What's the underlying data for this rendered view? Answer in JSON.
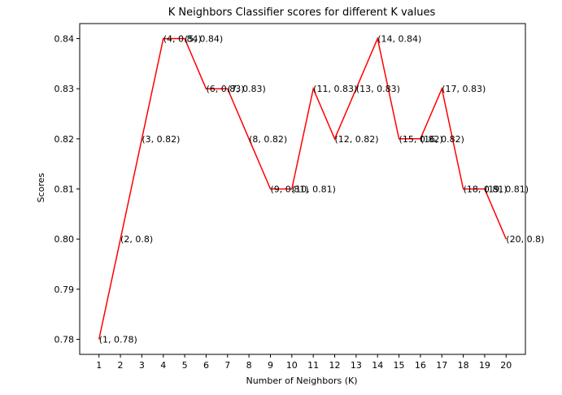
{
  "chart_data": {
    "type": "line",
    "title": "K Neighbors Classifier scores for different K values",
    "xlabel": "Number of Neighbors (K)",
    "ylabel": "Scores",
    "x": [
      1,
      2,
      3,
      4,
      5,
      6,
      7,
      8,
      9,
      10,
      11,
      12,
      13,
      14,
      15,
      16,
      17,
      18,
      19,
      20
    ],
    "y": [
      0.78,
      0.8,
      0.82,
      0.84,
      0.84,
      0.83,
      0.83,
      0.82,
      0.81,
      0.81,
      0.83,
      0.82,
      0.83,
      0.84,
      0.82,
      0.82,
      0.83,
      0.81,
      0.81,
      0.8
    ],
    "point_labels": [
      "(1, 0.78)",
      "(2, 0.8)",
      "(3, 0.82)",
      "(4, 0.84)",
      "(5, 0.84)",
      "(6, 0.83)",
      "(7, 0.83)",
      "(8, 0.82)",
      "(9, 0.81)",
      "(10, 0.81)",
      "(11, 0.83)",
      "(12, 0.82)",
      "(13, 0.83)",
      "(14, 0.84)",
      "(15, 0.82)",
      "(16, 0.82)",
      "(17, 0.83)",
      "(18, 0.81)",
      "(19, 0.81)",
      "(20, 0.8)"
    ],
    "xticks": [
      "1",
      "2",
      "3",
      "4",
      "5",
      "6",
      "7",
      "8",
      "9",
      "10",
      "11",
      "12",
      "13",
      "14",
      "15",
      "16",
      "17",
      "18",
      "19",
      "20"
    ],
    "yticks": [
      "0.78",
      "0.79",
      "0.80",
      "0.81",
      "0.82",
      "0.83",
      "0.84"
    ],
    "xlim": [
      0.1,
      20.9
    ],
    "ylim": [
      0.777,
      0.843
    ],
    "line_color": "#ff0000",
    "grid": false,
    "legend": "none"
  }
}
